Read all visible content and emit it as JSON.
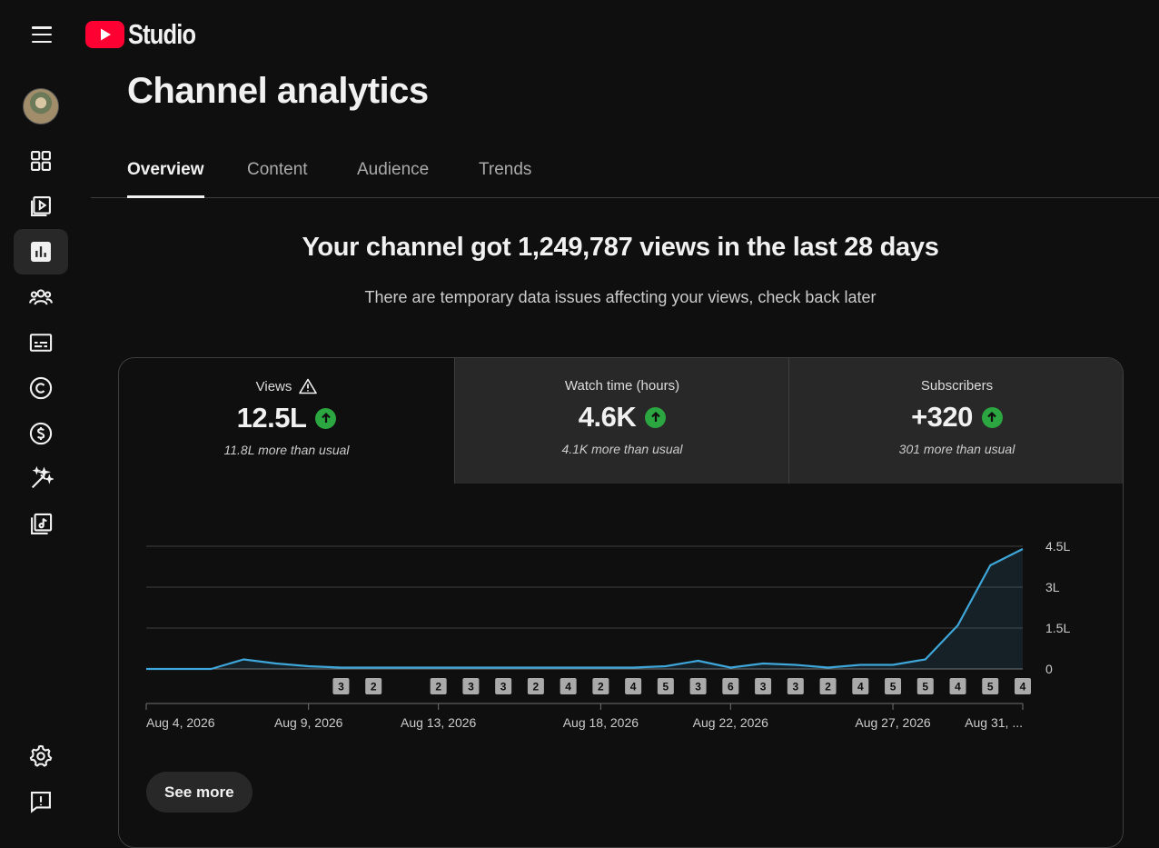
{
  "app": {
    "logo_text": "Studio"
  },
  "page": {
    "title": "Channel analytics"
  },
  "tabs": [
    {
      "label": "Overview",
      "active": true
    },
    {
      "label": "Content",
      "active": false
    },
    {
      "label": "Audience",
      "active": false
    },
    {
      "label": "Trends",
      "active": false
    }
  ],
  "sidebar": {
    "items": [
      {
        "icon": "dashboard-icon",
        "active": false
      },
      {
        "icon": "content-icon",
        "active": false
      },
      {
        "icon": "analytics-icon",
        "active": true
      },
      {
        "icon": "community-icon",
        "active": false
      },
      {
        "icon": "subtitles-icon",
        "active": false
      },
      {
        "icon": "copyright-icon",
        "active": false
      },
      {
        "icon": "earn-icon",
        "active": false
      },
      {
        "icon": "customization-icon",
        "active": false
      },
      {
        "icon": "audio-library-icon",
        "active": false
      }
    ],
    "bottom": [
      {
        "icon": "settings-icon"
      },
      {
        "icon": "feedback-icon"
      }
    ]
  },
  "summary": {
    "headline": "Your channel got 1,249,787 views in the last 28 days",
    "notice": "There are temporary data issues affecting your views, check back later"
  },
  "metrics": [
    {
      "label": "Views",
      "value": "12.5L",
      "note": "11.8L more than usual",
      "warning": true,
      "selected": true
    },
    {
      "label": "Watch time (hours)",
      "value": "4.6K",
      "note": "4.1K more than usual",
      "warning": false,
      "selected": false
    },
    {
      "label": "Subscribers",
      "value": "+320",
      "note": "301 more than usual",
      "warning": false,
      "selected": false
    }
  ],
  "colors": {
    "accent_line": "#3ea6d8",
    "up_green": "#2ba640",
    "logo_red": "#ff0033"
  },
  "chart_data": {
    "type": "area",
    "series": [
      {
        "values": [
          0.0,
          0.0,
          0.0,
          0.35,
          0.2,
          0.1,
          0.05,
          0.05,
          0.05,
          0.05,
          0.05,
          0.05,
          0.05,
          0.05,
          0.05,
          0.05,
          0.1,
          0.3,
          0.05,
          0.2,
          0.15,
          0.05,
          0.15,
          0.15,
          0.35,
          1.6,
          3.8,
          4.4
        ]
      }
    ],
    "ylim": [
      0,
      4.5
    ],
    "y_ticks": [
      "4.5L",
      "3L",
      "1.5L",
      "0"
    ],
    "y_tick_values": [
      4.5,
      3,
      1.5,
      0
    ],
    "x_ticks": [
      {
        "label": "Aug 4, 2026",
        "index": 0
      },
      {
        "label": "Aug 9, 2026",
        "index": 5
      },
      {
        "label": "Aug 13, 2026",
        "index": 9
      },
      {
        "label": "Aug 18, 2026",
        "index": 14
      },
      {
        "label": "Aug 22, 2026",
        "index": 18
      },
      {
        "label": "Aug 27, 2026",
        "index": 23
      },
      {
        "label": "Aug 31, ...",
        "index": 27
      }
    ],
    "markers": [
      {
        "index": 6,
        "label": "3"
      },
      {
        "index": 7,
        "label": "2"
      },
      {
        "index": 9,
        "label": "2"
      },
      {
        "index": 10,
        "label": "3"
      },
      {
        "index": 11,
        "label": "3"
      },
      {
        "index": 12,
        "label": "2"
      },
      {
        "index": 13,
        "label": "4"
      },
      {
        "index": 14,
        "label": "2"
      },
      {
        "index": 15,
        "label": "4"
      },
      {
        "index": 16,
        "label": "5"
      },
      {
        "index": 17,
        "label": "3"
      },
      {
        "index": 18,
        "label": "6"
      },
      {
        "index": 19,
        "label": "3"
      },
      {
        "index": 20,
        "label": "3"
      },
      {
        "index": 21,
        "label": "2"
      },
      {
        "index": 22,
        "label": "4"
      },
      {
        "index": 23,
        "label": "5"
      },
      {
        "index": 24,
        "label": "5"
      },
      {
        "index": 25,
        "label": "4"
      },
      {
        "index": 26,
        "label": "5"
      },
      {
        "index": 27,
        "label": "4"
      }
    ]
  },
  "actions": {
    "see_more": "See more"
  }
}
